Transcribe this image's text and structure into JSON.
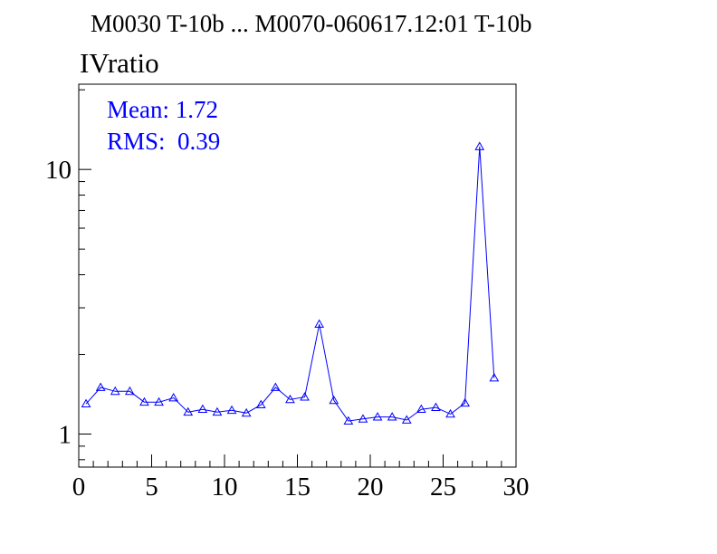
{
  "header": {
    "title": "M0030 T-10b ... M0070-060617.12:01 T-10b",
    "histogram_name": "IVratio"
  },
  "stats": {
    "mean_label": "Mean: 1.72",
    "rms_label": "RMS:  0.39"
  },
  "colors": {
    "series": "#0000ff",
    "axes": "#000000",
    "background": "#ffffff"
  },
  "chart_data": {
    "type": "line",
    "title": "IVratio",
    "xlabel": "",
    "ylabel": "",
    "xlim": [
      0,
      30
    ],
    "ylim": [
      0.75,
      21
    ],
    "yscale": "log",
    "grid": false,
    "marker": "open-triangle",
    "x_ticks": [
      "0",
      "5",
      "10",
      "15",
      "20",
      "25",
      "30"
    ],
    "y_ticks": [
      "1",
      "10"
    ],
    "x": [
      0.5,
      1.5,
      2.5,
      3.5,
      4.5,
      5.5,
      6.5,
      7.5,
      8.5,
      9.5,
      10.5,
      11.5,
      12.5,
      13.5,
      14.5,
      15.5,
      16.5,
      17.5,
      18.5,
      19.5,
      20.5,
      21.5,
      22.5,
      23.5,
      24.5,
      25.5,
      26.5,
      27.5,
      28.5,
      29.5
    ],
    "series": [
      {
        "values": [
          1.3,
          1.5,
          1.45,
          1.45,
          1.32,
          1.32,
          1.37,
          1.21,
          1.24,
          1.21,
          1.23,
          1.2,
          1.29,
          1.5,
          1.35,
          1.38,
          2.6,
          1.34,
          1.12,
          1.14,
          1.16,
          1.16,
          1.13,
          1.24,
          1.26,
          1.19,
          1.31,
          12.2,
          1.63,
          null
        ]
      }
    ]
  }
}
